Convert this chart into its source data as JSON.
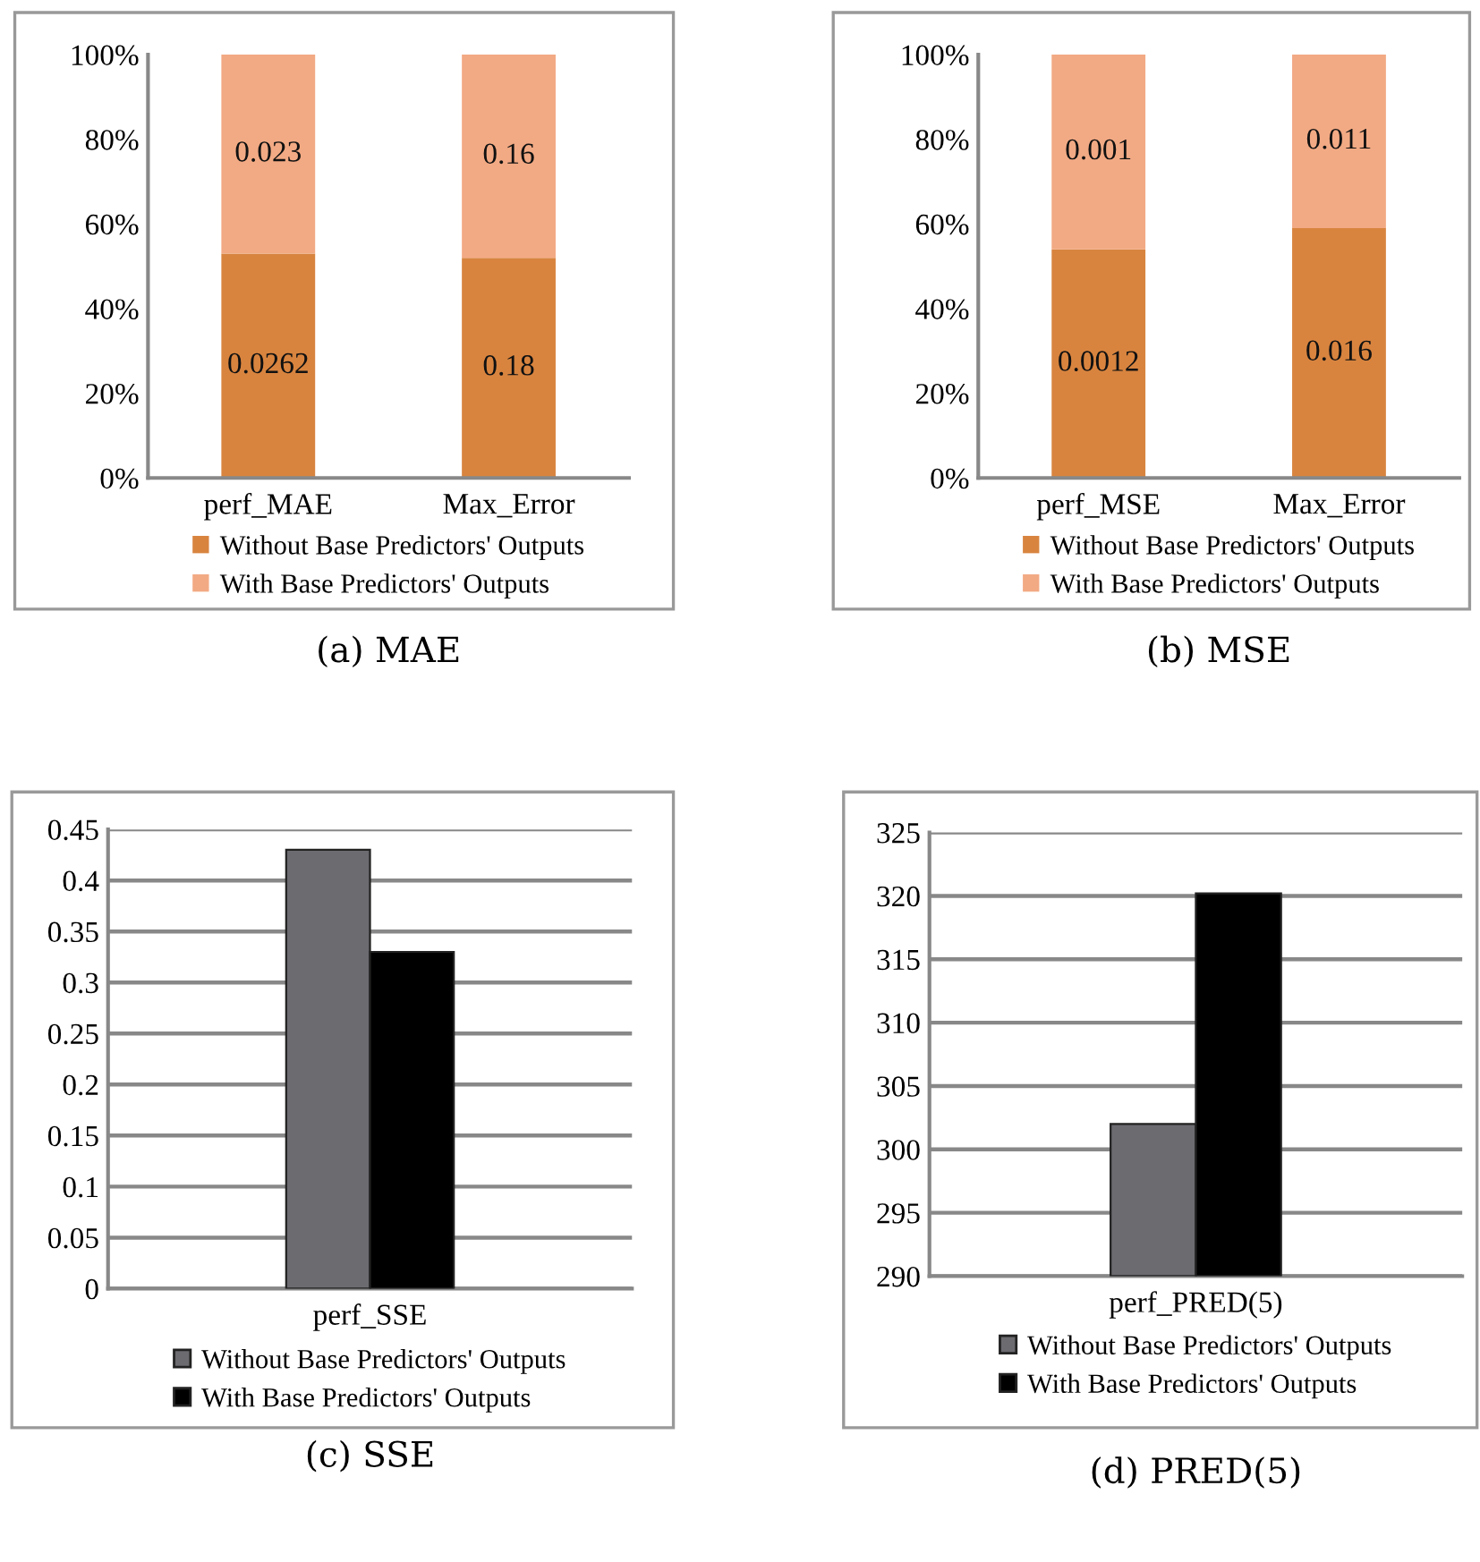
{
  "chart_data": [
    {
      "type": "bar",
      "title": "(a) MAE",
      "categories": [
        "perf_MAE",
        "Max_Error"
      ],
      "stacked": true,
      "legend": "bottom",
      "grid": false,
      "ylim": [
        0,
        100
      ],
      "yticks": [
        {
          "value": 0,
          "label": "0%"
        },
        {
          "value": 20,
          "label": "20%"
        },
        {
          "value": 40,
          "label": "40%"
        },
        {
          "value": 60,
          "label": "60%"
        },
        {
          "value": 80,
          "label": "80%"
        },
        {
          "value": 100,
          "label": "100%"
        }
      ],
      "series": [
        {
          "name": "Without Base Predictors' Outputs",
          "color": "#d8843f",
          "values": [
            53,
            52
          ]
        },
        {
          "name": "With Base Predictors' Outputs",
          "color": "#f2aa84",
          "values": [
            47,
            48
          ]
        }
      ],
      "annotations": [
        "0.0262",
        "0.18",
        "0.023",
        "0.16"
      ]
    },
    {
      "type": "bar",
      "title": "(b) MSE",
      "categories": [
        "perf_MSE",
        "Max_Error"
      ],
      "stacked": true,
      "legend": "bottom",
      "grid": false,
      "ylim": [
        0,
        100
      ],
      "yticks": [
        {
          "value": 0,
          "label": "0%"
        },
        {
          "value": 20,
          "label": "20%"
        },
        {
          "value": 40,
          "label": "40%"
        },
        {
          "value": 60,
          "label": "60%"
        },
        {
          "value": 80,
          "label": "80%"
        },
        {
          "value": 100,
          "label": "100%"
        }
      ],
      "series": [
        {
          "name": "Without Base Predictors' Outputs",
          "color": "#d8843f",
          "values": [
            54,
            59
          ]
        },
        {
          "name": "With Base Predictors' Outputs",
          "color": "#f2aa84",
          "values": [
            46,
            41
          ]
        }
      ],
      "annotations": [
        "0.0012",
        "0.016",
        "0.001",
        "0.011"
      ]
    },
    {
      "type": "bar",
      "title": "(c) SSE",
      "categories": [
        "perf_SSE"
      ],
      "legend": "bottom",
      "grid": "y",
      "ylim": [
        0,
        0.45
      ],
      "yticks": [
        0,
        0.05,
        0.1,
        0.15,
        0.2,
        0.25,
        0.3,
        0.35,
        0.4,
        0.45
      ],
      "series": [
        {
          "name": "Without Base Predictors' Outputs",
          "color": "#6b6b70",
          "values": [
            0.43
          ]
        },
        {
          "name": "With Base Predictors' Outputs",
          "color": "#000000",
          "values": [
            0.33
          ]
        }
      ]
    },
    {
      "type": "bar",
      "title": "(d) PRED(5)",
      "categories": [
        "perf_PRED(5)"
      ],
      "legend": "bottom",
      "grid": "y",
      "ylim": [
        290,
        325
      ],
      "yticks": [
        290,
        295,
        300,
        305,
        310,
        315,
        320,
        325
      ],
      "series": [
        {
          "name": "Without Base Predictors' Outputs",
          "color": "#6b6b70",
          "values": [
            302.0
          ]
        },
        {
          "name": "With Base Predictors' Outputs",
          "color": "#000000",
          "values": [
            320.2
          ]
        }
      ]
    }
  ]
}
